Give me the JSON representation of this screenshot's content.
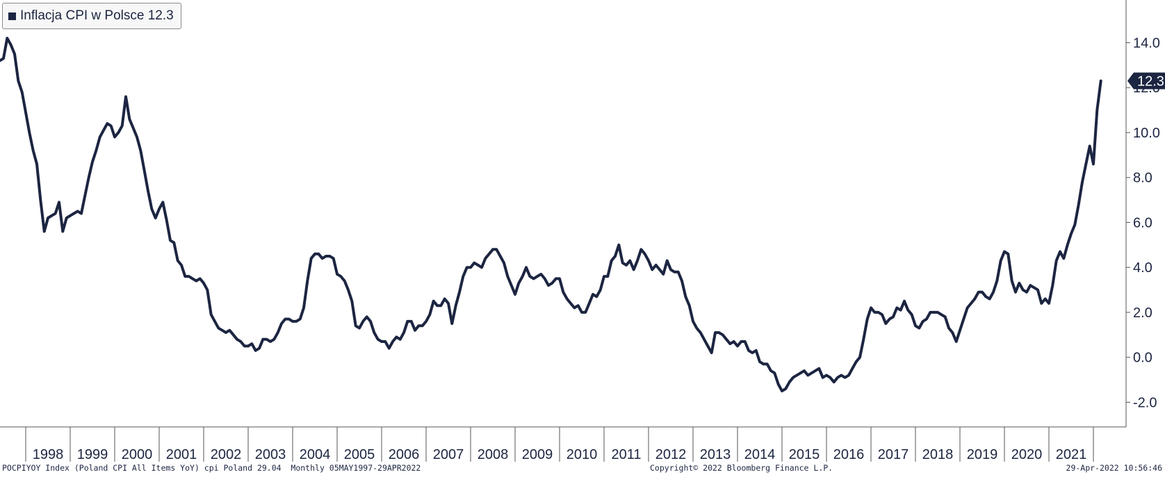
{
  "legend": {
    "label": "Inflacja CPI w Polsce 12.3"
  },
  "footer": {
    "source": "POCPIYOY Index (Poland CPI All Items YoY) cpi Poland 29.04  Monthly 05MAY1997-29APR2022",
    "copyright": "Copyright© 2022 Bloomberg Finance L.P.",
    "timestamp": "29-Apr-2022 10:56:46"
  },
  "colors": {
    "line": "#1c2541",
    "axis": "#555555",
    "background": "#ffffff"
  },
  "chart_data": {
    "type": "line",
    "title": "",
    "xlabel": "",
    "ylabel": "",
    "grid": false,
    "legend_position": "top-left",
    "x_start": "1997-05",
    "x_end": "2022-03",
    "year_labels": [
      "1998",
      "1999",
      "2000",
      "2001",
      "2002",
      "2003",
      "2004",
      "2005",
      "2006",
      "2007",
      "2008",
      "2009",
      "2010",
      "2011",
      "2012",
      "2013",
      "2014",
      "2015",
      "2016",
      "2017",
      "2018",
      "2019",
      "2020",
      "2021"
    ],
    "y_ticks": [
      "14.0",
      "12.0",
      "10.0",
      "8.0",
      "6.0",
      "4.0",
      "2.0",
      "0.0",
      "-2.0"
    ],
    "ylim": [
      -3.1,
      15.9
    ],
    "last_value_label": "12.3",
    "series": [
      {
        "name": "Inflacja CPI w Polsce",
        "values": [
          13.2,
          13.2,
          13.3,
          14.2,
          13.9,
          13.5,
          12.3,
          11.8,
          10.9,
          10.0,
          9.2,
          8.6,
          7.0,
          5.6,
          6.2,
          6.3,
          6.4,
          6.9,
          5.6,
          6.2,
          6.3,
          6.4,
          6.5,
          6.4,
          7.2,
          8.0,
          8.7,
          9.2,
          9.8,
          10.1,
          10.4,
          10.3,
          9.8,
          10.0,
          10.3,
          11.6,
          10.6,
          10.2,
          9.8,
          9.2,
          8.3,
          7.4,
          6.6,
          6.2,
          6.6,
          6.9,
          6.1,
          5.2,
          5.1,
          4.3,
          4.1,
          3.6,
          3.6,
          3.5,
          3.4,
          3.5,
          3.3,
          3.0,
          1.9,
          1.6,
          1.3,
          1.2,
          1.1,
          1.2,
          1.0,
          0.8,
          0.7,
          0.5,
          0.5,
          0.6,
          0.3,
          0.4,
          0.8,
          0.8,
          0.7,
          0.8,
          1.1,
          1.5,
          1.7,
          1.7,
          1.6,
          1.6,
          1.7,
          2.2,
          3.4,
          4.4,
          4.6,
          4.6,
          4.4,
          4.5,
          4.5,
          4.4,
          3.7,
          3.6,
          3.4,
          3.0,
          2.5,
          1.4,
          1.3,
          1.6,
          1.8,
          1.6,
          1.1,
          0.8,
          0.7,
          0.7,
          0.4,
          0.7,
          0.9,
          0.8,
          1.1,
          1.6,
          1.6,
          1.2,
          1.4,
          1.4,
          1.6,
          1.9,
          2.5,
          2.3,
          2.3,
          2.6,
          2.4,
          1.5,
          2.3,
          2.9,
          3.6,
          4.0,
          4.0,
          4.2,
          4.1,
          4.0,
          4.4,
          4.6,
          4.8,
          4.8,
          4.5,
          4.2,
          3.6,
          3.2,
          2.8,
          3.3,
          3.6,
          4.0,
          3.6,
          3.5,
          3.6,
          3.7,
          3.5,
          3.2,
          3.3,
          3.5,
          3.5,
          2.9,
          2.6,
          2.4,
          2.2,
          2.3,
          2.0,
          2.0,
          2.4,
          2.8,
          2.7,
          3.0,
          3.6,
          3.6,
          4.3,
          4.5,
          5.0,
          4.2,
          4.1,
          4.3,
          3.9,
          4.3,
          4.8,
          4.6,
          4.3,
          3.9,
          4.1,
          3.9,
          3.7,
          4.3,
          3.9,
          3.8,
          3.8,
          3.4,
          2.7,
          2.3,
          1.6,
          1.3,
          1.1,
          0.8,
          0.5,
          0.2,
          1.1,
          1.1,
          1.0,
          0.8,
          0.6,
          0.7,
          0.5,
          0.7,
          0.7,
          0.3,
          0.2,
          0.3,
          -0.2,
          -0.3,
          -0.3,
          -0.6,
          -0.7,
          -1.2,
          -1.5,
          -1.4,
          -1.1,
          -0.9,
          -0.8,
          -0.7,
          -0.6,
          -0.8,
          -0.7,
          -0.6,
          -0.5,
          -0.9,
          -0.8,
          -0.9,
          -1.1,
          -0.9,
          -0.8,
          -0.9,
          -0.8,
          -0.5,
          -0.2,
          0.0,
          0.8,
          1.7,
          2.2,
          2.0,
          2.0,
          1.9,
          1.5,
          1.7,
          1.8,
          2.2,
          2.1,
          2.5,
          2.1,
          1.9,
          1.4,
          1.3,
          1.6,
          1.7,
          2.0,
          2.0,
          2.0,
          1.9,
          1.8,
          1.3,
          1.1,
          0.7,
          1.2,
          1.7,
          2.2,
          2.4,
          2.6,
          2.9,
          2.9,
          2.7,
          2.6,
          2.9,
          3.4,
          4.3,
          4.7,
          4.6,
          3.4,
          2.9,
          3.3,
          3.0,
          2.9,
          3.2,
          3.1,
          3.0,
          2.4,
          2.6,
          2.4,
          3.2,
          4.3,
          4.7,
          4.4,
          5.0,
          5.5,
          5.9,
          6.8,
          7.8,
          8.6,
          9.4,
          8.6,
          11.0,
          12.3
        ]
      }
    ]
  }
}
